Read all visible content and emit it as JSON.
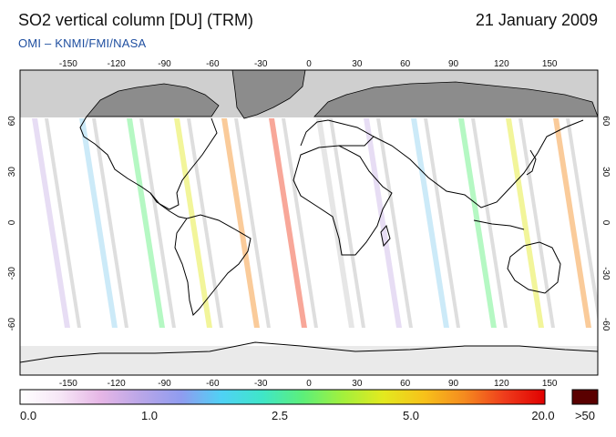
{
  "header": {
    "title": "SO2 vertical column [DU] (TRM)",
    "date": "21 January 2009",
    "credit": "OMI  –  KNMI/FMI/NASA"
  },
  "map": {
    "lon_ticks": [
      "-150",
      "-120",
      "-90",
      "-60",
      "-30",
      "0",
      "30",
      "60",
      "90",
      "120",
      "150"
    ],
    "lat_ticks": [
      "60",
      "30",
      "0",
      "-30",
      "-60"
    ],
    "colors": {
      "frame": "#000000",
      "polar_gray": "#cfcfcf",
      "land_fill": "#8c8c8c",
      "coastline": "#000000",
      "track_gray": "#c8c8c8"
    }
  },
  "colorbar": {
    "labels": [
      "0.0",
      "1.0",
      "2.5",
      "5.0",
      "20.0",
      ">50"
    ],
    "stops": [
      "#ffffff",
      "#f6e6f6",
      "#e6b6e6",
      "#b9a6e8",
      "#8f9cf0",
      "#4fd2f5",
      "#3fe6c8",
      "#5cef7a",
      "#a3f03c",
      "#e3e91f",
      "#f7c21a",
      "#f58b1f",
      "#ef3c1c",
      "#e00000"
    ],
    "overflow_color": "#5a0000"
  }
}
